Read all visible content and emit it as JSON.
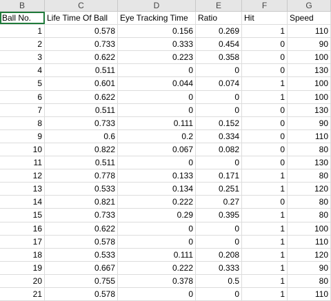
{
  "column_letters": [
    "B",
    "C",
    "D",
    "E",
    "F",
    "G"
  ],
  "headers": [
    "Ball No.",
    "Life Time Of Ball",
    "Eye Tracking Time",
    "Ratio",
    "Hit",
    "Speed"
  ],
  "rows": [
    [
      "1",
      "0.578",
      "0.156",
      "0.269",
      "1",
      "110"
    ],
    [
      "2",
      "0.733",
      "0.333",
      "0.454",
      "0",
      "90"
    ],
    [
      "3",
      "0.622",
      "0.223",
      "0.358",
      "0",
      "100"
    ],
    [
      "4",
      "0.511",
      "0",
      "0",
      "0",
      "130"
    ],
    [
      "5",
      "0.601",
      "0.044",
      "0.074",
      "1",
      "100"
    ],
    [
      "6",
      "0.622",
      "0",
      "0",
      "1",
      "100"
    ],
    [
      "7",
      "0.511",
      "0",
      "0",
      "0",
      "130"
    ],
    [
      "8",
      "0.733",
      "0.111",
      "0.152",
      "0",
      "90"
    ],
    [
      "9",
      "0.6",
      "0.2",
      "0.334",
      "0",
      "110"
    ],
    [
      "10",
      "0.822",
      "0.067",
      "0.082",
      "0",
      "80"
    ],
    [
      "11",
      "0.511",
      "0",
      "0",
      "0",
      "130"
    ],
    [
      "12",
      "0.778",
      "0.133",
      "0.171",
      "1",
      "80"
    ],
    [
      "13",
      "0.533",
      "0.134",
      "0.251",
      "1",
      "120"
    ],
    [
      "14",
      "0.821",
      "0.222",
      "0.27",
      "0",
      "80"
    ],
    [
      "15",
      "0.733",
      "0.29",
      "0.395",
      "1",
      "80"
    ],
    [
      "16",
      "0.622",
      "0",
      "0",
      "1",
      "100"
    ],
    [
      "17",
      "0.578",
      "0",
      "0",
      "1",
      "110"
    ],
    [
      "18",
      "0.533",
      "0.111",
      "0.208",
      "1",
      "120"
    ],
    [
      "19",
      "0.667",
      "0.222",
      "0.333",
      "1",
      "90"
    ],
    [
      "20",
      "0.755",
      "0.378",
      "0.5",
      "1",
      "80"
    ],
    [
      "21",
      "0.578",
      "0",
      "0",
      "1",
      "110"
    ]
  ],
  "colors": {
    "header_bg": "#e6e6e6",
    "grid_line": "#dcdcdc",
    "selection": "#1f7a3a"
  }
}
